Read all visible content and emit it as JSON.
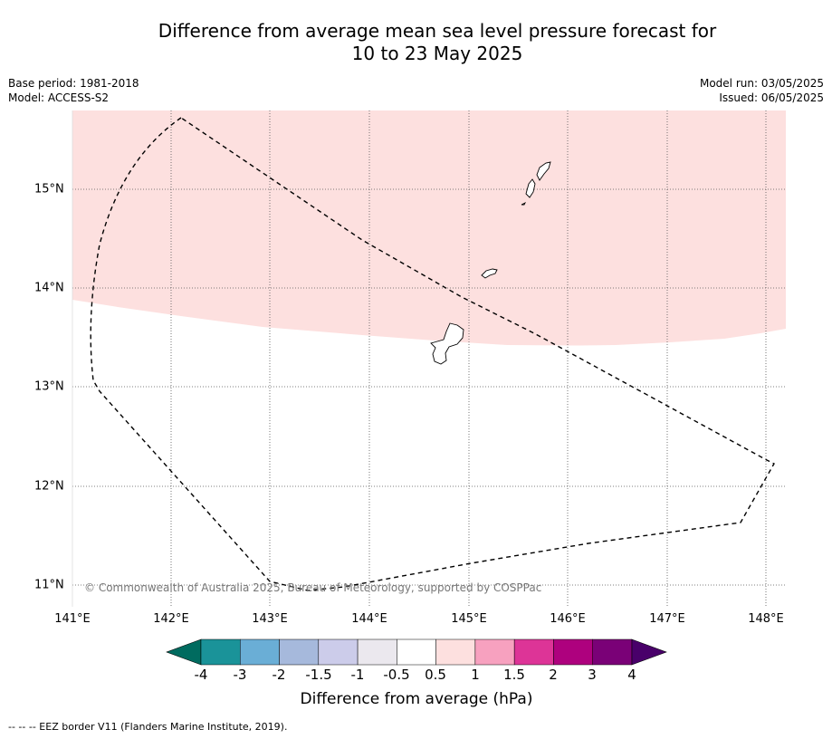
{
  "title_line1": "Difference from average mean sea level pressure forecast for",
  "title_line2": "10 to 23 May 2025",
  "base_period": "Base period: 1981-2018",
  "model": "Model: ACCESS-S2",
  "model_run": "Model run: 03/05/2025",
  "issued": "Issued: 06/05/2025",
  "copyright": "© Commonwealth of Australia 2025, Bureau of Meteorology, supported by COSPPac",
  "footer_note": "--  --  -- EEZ border V11 (Flanders Marine Institute, 2019).",
  "lat_labels": [
    "15°N",
    "14°N",
    "13°N",
    "12°N",
    "11°N"
  ],
  "lon_labels": [
    "141°E",
    "142°E",
    "143°E",
    "144°E",
    "145°E",
    "146°E",
    "147°E",
    "148°E"
  ],
  "colorbar": {
    "title": "Difference from average (hPa)",
    "tick_labels": [
      "-4",
      "-3",
      "-2",
      "-1.5",
      "-1",
      "-0.5",
      "0.5",
      "1",
      "1.5",
      "2",
      "3",
      "4"
    ],
    "colors": [
      "#006b5f",
      "#1a9399",
      "#6aaed6",
      "#a6b9dc",
      "#ccccea",
      "#ebe8ee",
      "#ffffff",
      "#fde0df",
      "#f7a1bf",
      "#dd3497",
      "#ae017e",
      "#7a0177",
      "#49006a"
    ]
  },
  "fill_colors": {
    "positive_0_5_to_1": "#fde0df",
    "neutral": "#ffffff"
  }
}
